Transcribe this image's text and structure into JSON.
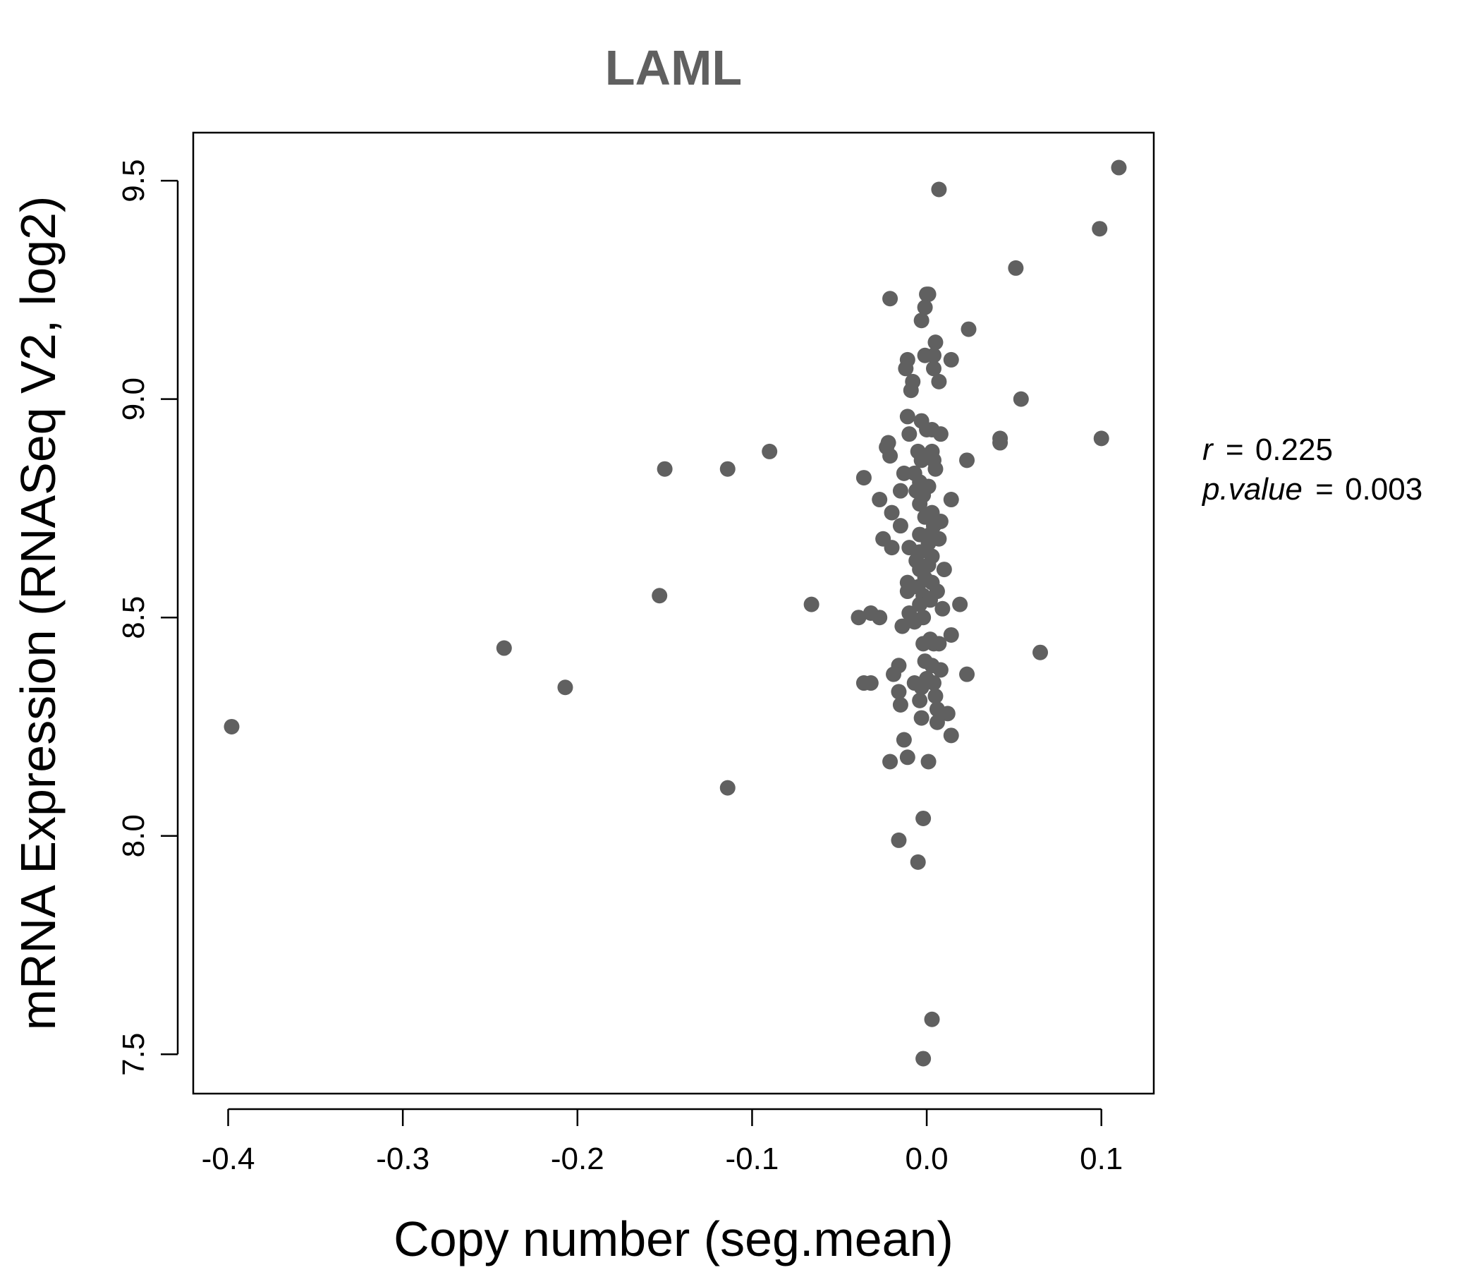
{
  "chart_data": {
    "type": "scatter",
    "title": "LAML",
    "xlabel": "Copy number (seg.mean)",
    "ylabel": "mRNA Expression (RNASeq V2, log2)",
    "xlim": [
      -0.42,
      0.13
    ],
    "ylim": [
      7.41,
      9.61
    ],
    "x_ticks": [
      -0.4,
      -0.3,
      -0.2,
      -0.1,
      0.0,
      0.1
    ],
    "x_tick_labels": [
      "-0.4",
      "-0.3",
      "-0.2",
      "-0.1",
      "0.0",
      "0.1"
    ],
    "y_ticks": [
      7.5,
      8.0,
      8.5,
      9.0,
      9.5
    ],
    "y_tick_labels": [
      "7.5",
      "8.0",
      "8.5",
      "9.0",
      "9.5"
    ],
    "point_color": "#606060",
    "grid": false,
    "annotation": {
      "r_label": "r",
      "r_value": "0.225",
      "p_label": "p.value",
      "p_value": "0.003",
      "equals": "="
    },
    "points": [
      [
        -0.398,
        8.25
      ],
      [
        -0.242,
        8.43
      ],
      [
        -0.207,
        8.34
      ],
      [
        -0.153,
        8.55
      ],
      [
        -0.15,
        8.84
      ],
      [
        -0.114,
        8.84
      ],
      [
        -0.114,
        8.11
      ],
      [
        -0.09,
        8.88
      ],
      [
        -0.066,
        8.53
      ],
      [
        0.11,
        9.53
      ],
      [
        0.099,
        9.39
      ],
      [
        0.1,
        8.91
      ],
      [
        0.051,
        9.3
      ],
      [
        0.054,
        9.0
      ],
      [
        0.065,
        8.42
      ],
      [
        0.042,
        8.91
      ],
      [
        0.042,
        8.9
      ],
      [
        0.024,
        9.16
      ],
      [
        0.023,
        8.86
      ],
      [
        0.023,
        8.37
      ],
      [
        0.019,
        8.53
      ],
      [
        0.007,
        9.48
      ],
      [
        0.001,
        9.24
      ],
      [
        0.0,
        9.24
      ],
      [
        -0.021,
        9.23
      ],
      [
        -0.001,
        9.21
      ],
      [
        -0.003,
        9.18
      ],
      [
        0.005,
        9.13
      ],
      [
        0.004,
        9.1
      ],
      [
        -0.001,
        9.1
      ],
      [
        0.014,
        9.09
      ],
      [
        -0.011,
        9.09
      ],
      [
        -0.012,
        9.07
      ],
      [
        0.004,
        9.07
      ],
      [
        -0.008,
        9.04
      ],
      [
        0.007,
        9.04
      ],
      [
        -0.009,
        9.02
      ],
      [
        -0.011,
        8.96
      ],
      [
        -0.003,
        8.95
      ],
      [
        0.0,
        8.93
      ],
      [
        0.003,
        8.93
      ],
      [
        -0.01,
        8.92
      ],
      [
        0.008,
        8.92
      ],
      [
        -0.022,
        8.9
      ],
      [
        -0.023,
        8.89
      ],
      [
        -0.021,
        8.87
      ],
      [
        -0.005,
        8.88
      ],
      [
        0.003,
        8.88
      ],
      [
        0.004,
        8.86
      ],
      [
        -0.003,
        8.86
      ],
      [
        0.005,
        8.84
      ],
      [
        -0.013,
        8.83
      ],
      [
        -0.007,
        8.83
      ],
      [
        -0.036,
        8.82
      ],
      [
        -0.004,
        8.81
      ],
      [
        0.001,
        8.8
      ],
      [
        -0.006,
        8.79
      ],
      [
        -0.015,
        8.79
      ],
      [
        -0.002,
        8.78
      ],
      [
        -0.027,
        8.77
      ],
      [
        0.014,
        8.77
      ],
      [
        -0.004,
        8.76
      ],
      [
        -0.02,
        8.74
      ],
      [
        0.003,
        8.74
      ],
      [
        -0.001,
        8.73
      ],
      [
        0.008,
        8.72
      ],
      [
        -0.015,
        8.71
      ],
      [
        0.004,
        8.71
      ],
      [
        0.002,
        8.69
      ],
      [
        -0.004,
        8.69
      ],
      [
        0.007,
        8.68
      ],
      [
        -0.025,
        8.68
      ],
      [
        0.001,
        8.67
      ],
      [
        -0.01,
        8.66
      ],
      [
        -0.02,
        8.66
      ],
      [
        -0.004,
        8.65
      ],
      [
        0.003,
        8.64
      ],
      [
        -0.006,
        8.63
      ],
      [
        0.001,
        8.62
      ],
      [
        -0.004,
        8.61
      ],
      [
        0.01,
        8.61
      ],
      [
        -0.001,
        8.59
      ],
      [
        0.003,
        8.58
      ],
      [
        -0.011,
        8.58
      ],
      [
        -0.005,
        8.57
      ],
      [
        0.006,
        8.56
      ],
      [
        -0.011,
        8.56
      ],
      [
        -0.002,
        8.55
      ],
      [
        0.002,
        8.54
      ],
      [
        -0.004,
        8.53
      ],
      [
        0.009,
        8.52
      ],
      [
        -0.032,
        8.51
      ],
      [
        -0.027,
        8.5
      ],
      [
        -0.039,
        8.5
      ],
      [
        -0.01,
        8.51
      ],
      [
        -0.002,
        8.5
      ],
      [
        -0.007,
        8.49
      ],
      [
        -0.014,
        8.48
      ],
      [
        0.014,
        8.46
      ],
      [
        0.002,
        8.45
      ],
      [
        0.004,
        8.44
      ],
      [
        -0.002,
        8.44
      ],
      [
        0.007,
        8.44
      ],
      [
        -0.001,
        8.4
      ],
      [
        -0.016,
        8.39
      ],
      [
        0.003,
        8.39
      ],
      [
        0.008,
        8.38
      ],
      [
        -0.019,
        8.37
      ],
      [
        0.0,
        8.36
      ],
      [
        -0.007,
        8.35
      ],
      [
        0.004,
        8.35
      ],
      [
        -0.036,
        8.35
      ],
      [
        -0.032,
        8.35
      ],
      [
        -0.003,
        8.34
      ],
      [
        -0.016,
        8.33
      ],
      [
        0.005,
        8.32
      ],
      [
        -0.004,
        8.31
      ],
      [
        0.006,
        8.29
      ],
      [
        -0.015,
        8.3
      ],
      [
        0.012,
        8.28
      ],
      [
        -0.003,
        8.27
      ],
      [
        0.006,
        8.26
      ],
      [
        0.014,
        8.23
      ],
      [
        -0.013,
        8.22
      ],
      [
        -0.011,
        8.18
      ],
      [
        -0.021,
        8.17
      ],
      [
        0.001,
        8.17
      ],
      [
        -0.002,
        8.04
      ],
      [
        -0.016,
        7.99
      ],
      [
        -0.005,
        7.94
      ],
      [
        0.003,
        7.58
      ],
      [
        -0.002,
        7.49
      ]
    ]
  }
}
